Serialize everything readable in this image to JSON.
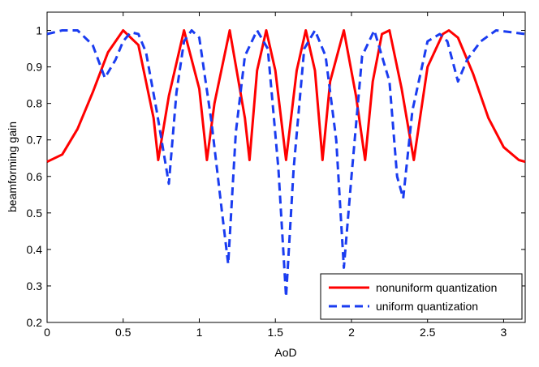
{
  "chart_data": {
    "type": "line",
    "title": "",
    "xlabel": "AoD",
    "ylabel": "beamforming gain",
    "xlim": [
      0,
      3.1416
    ],
    "ylim": [
      0.2,
      1.05
    ],
    "xticks": [
      0,
      0.5,
      1,
      1.5,
      2,
      2.5,
      3
    ],
    "xtick_labels": [
      "0",
      "0.5",
      "1",
      "1.5",
      "2",
      "2.5",
      "3"
    ],
    "yticks": [
      0.2,
      0.3,
      0.4,
      0.5,
      0.6,
      0.7,
      0.8,
      0.9,
      1
    ],
    "ytick_labels": [
      "0.2",
      "0.3",
      "0.4",
      "0.5",
      "0.6",
      "0.7",
      "0.8",
      "0.9",
      "1"
    ],
    "grid": false,
    "legend_position": "bottom-right",
    "series": [
      {
        "name": "nonuniform quantization",
        "color": "#ff0000",
        "style": "solid",
        "x": [
          0,
          0.1,
          0.2,
          0.3,
          0.4,
          0.5,
          0.6,
          0.7,
          0.73,
          0.8,
          0.9,
          1.0,
          1.05,
          1.1,
          1.2,
          1.3,
          1.33,
          1.38,
          1.44,
          1.5,
          1.57,
          1.64,
          1.7,
          1.76,
          1.81,
          1.86,
          1.95,
          2.03,
          2.09,
          2.14,
          2.2,
          2.25,
          2.33,
          2.41,
          2.5,
          2.6,
          2.64,
          2.7,
          2.8,
          2.9,
          3.0,
          3.1,
          3.1416
        ],
        "y": [
          0.64,
          0.66,
          0.73,
          0.83,
          0.94,
          1.0,
          0.96,
          0.76,
          0.645,
          0.82,
          1.0,
          0.84,
          0.645,
          0.8,
          1.0,
          0.76,
          0.645,
          0.89,
          1.0,
          0.89,
          0.645,
          0.89,
          1.0,
          0.89,
          0.645,
          0.86,
          1.0,
          0.82,
          0.645,
          0.86,
          0.99,
          1.0,
          0.84,
          0.645,
          0.9,
          0.99,
          1.0,
          0.98,
          0.88,
          0.76,
          0.68,
          0.645,
          0.64
        ]
      },
      {
        "name": "uniform quantization",
        "color": "#1a3cf0",
        "style": "dashed",
        "x": [
          0,
          0.1,
          0.2,
          0.3,
          0.38,
          0.45,
          0.5,
          0.55,
          0.6,
          0.65,
          0.72,
          0.8,
          0.85,
          0.9,
          0.95,
          1.0,
          1.08,
          1.15,
          1.19,
          1.24,
          1.3,
          1.38,
          1.45,
          1.52,
          1.57,
          1.62,
          1.69,
          1.76,
          1.83,
          1.9,
          1.95,
          2.0,
          2.07,
          2.15,
          2.25,
          2.3,
          2.34,
          2.4,
          2.5,
          2.58,
          2.63,
          2.7,
          2.76,
          2.85,
          2.95,
          3.05,
          3.1416
        ],
        "y": [
          0.99,
          1.0,
          1.0,
          0.96,
          0.87,
          0.92,
          0.97,
          0.995,
          0.99,
          0.94,
          0.78,
          0.58,
          0.83,
          0.97,
          1.0,
          0.98,
          0.75,
          0.5,
          0.36,
          0.72,
          0.93,
          1.0,
          0.95,
          0.62,
          0.27,
          0.62,
          0.95,
          1.0,
          0.93,
          0.7,
          0.35,
          0.6,
          0.93,
          1.0,
          0.86,
          0.6,
          0.54,
          0.78,
          0.97,
          0.99,
          0.97,
          0.86,
          0.92,
          0.97,
          1.0,
          0.995,
          0.99
        ]
      }
    ]
  }
}
